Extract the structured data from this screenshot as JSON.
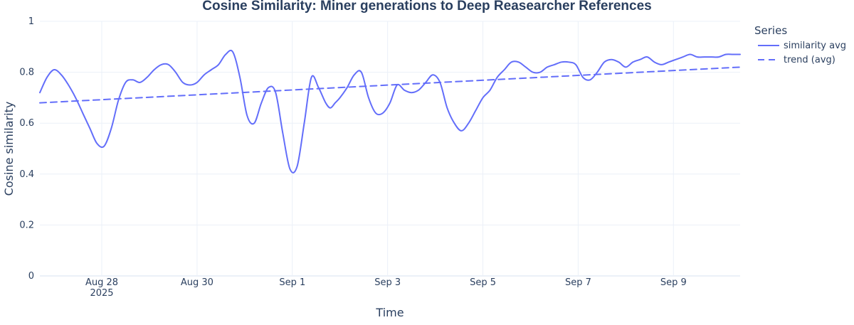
{
  "chart_data": {
    "type": "line",
    "title": "Cosine Similarity: Miner generations to Deep Reasearcher References",
    "xlabel": "Time",
    "ylabel": "Cosine similarity",
    "ylim": [
      0,
      1
    ],
    "yticks": [
      0,
      0.2,
      0.4,
      0.6,
      0.8,
      1
    ],
    "ytick_labels": [
      "0",
      "0.2",
      "0.4",
      "0.6",
      "0.8",
      "1"
    ],
    "xlim": [
      0,
      14.7
    ],
    "xticks": [
      1.3,
      3.3,
      5.3,
      7.3,
      9.3,
      11.3,
      13.3
    ],
    "xtick_labels": [
      "Aug 28",
      "Aug 30",
      "Sep 1",
      "Sep 3",
      "Sep 5",
      "Sep 7",
      "Sep 9"
    ],
    "xtick_sublabel": "2025",
    "grid": true,
    "legend": {
      "title": "Series",
      "placement": "top-right",
      "entries": [
        "similarity avg",
        "trend (avg)"
      ]
    },
    "series": [
      {
        "name": "similarity avg",
        "style": "solid",
        "color": "#636efa",
        "x": [
          0.0,
          0.15,
          0.3,
          0.45,
          0.6,
          0.75,
          0.9,
          1.05,
          1.2,
          1.35,
          1.5,
          1.65,
          1.8,
          1.95,
          2.1,
          2.25,
          2.4,
          2.55,
          2.7,
          2.85,
          3.0,
          3.15,
          3.3,
          3.45,
          3.6,
          3.75,
          3.9,
          4.05,
          4.2,
          4.35,
          4.5,
          4.65,
          4.8,
          4.95,
          5.1,
          5.25,
          5.4,
          5.55,
          5.7,
          5.85,
          6.0,
          6.1,
          6.2,
          6.3,
          6.45,
          6.6,
          6.75,
          6.9,
          7.05,
          7.2,
          7.35,
          7.5,
          7.65,
          7.8,
          7.95,
          8.1,
          8.25,
          8.4,
          8.55,
          8.7,
          8.85,
          9.0,
          9.15,
          9.3,
          9.45,
          9.6,
          9.75,
          9.9,
          10.05,
          10.2,
          10.35,
          10.5,
          10.65,
          10.8,
          10.95,
          11.1,
          11.25,
          11.4,
          11.55,
          11.7,
          11.85,
          12.0,
          12.15,
          12.3,
          12.45,
          12.6,
          12.75,
          12.9,
          13.05,
          13.2,
          13.35,
          13.5,
          13.65,
          13.8,
          13.95,
          14.1,
          14.25,
          14.4,
          14.55,
          14.7
        ],
        "y": [
          0.72,
          0.78,
          0.81,
          0.79,
          0.75,
          0.7,
          0.64,
          0.58,
          0.52,
          0.51,
          0.58,
          0.69,
          0.76,
          0.77,
          0.76,
          0.78,
          0.81,
          0.83,
          0.83,
          0.8,
          0.76,
          0.75,
          0.76,
          0.79,
          0.81,
          0.83,
          0.87,
          0.88,
          0.78,
          0.63,
          0.6,
          0.68,
          0.74,
          0.72,
          0.56,
          0.42,
          0.43,
          0.6,
          0.78,
          0.74,
          0.68,
          0.66,
          0.68,
          0.7,
          0.74,
          0.79,
          0.8,
          0.7,
          0.64,
          0.64,
          0.68,
          0.75,
          0.73,
          0.72,
          0.73,
          0.76,
          0.79,
          0.76,
          0.66,
          0.6,
          0.57,
          0.6,
          0.65,
          0.7,
          0.73,
          0.78,
          0.81,
          0.84,
          0.84,
          0.82,
          0.8,
          0.8,
          0.82,
          0.83,
          0.84,
          0.84,
          0.83,
          0.78,
          0.77,
          0.8,
          0.84,
          0.85,
          0.84,
          0.82,
          0.84,
          0.85,
          0.86,
          0.84,
          0.83,
          0.84,
          0.85,
          0.86,
          0.87,
          0.86,
          0.86,
          0.86,
          0.86,
          0.87,
          0.87,
          0.87
        ]
      },
      {
        "name": "trend (avg)",
        "style": "dashed",
        "color": "#636efa",
        "x": [
          0.0,
          14.7
        ],
        "y": [
          0.68,
          0.82
        ]
      }
    ]
  }
}
